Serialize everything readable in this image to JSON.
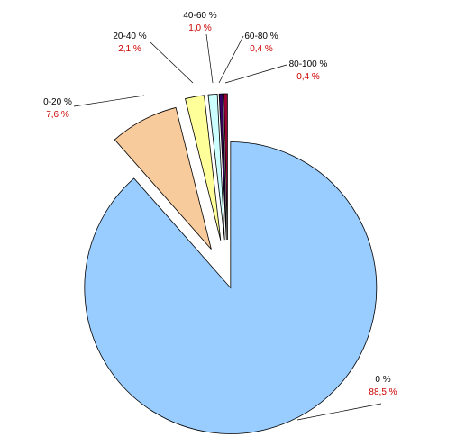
{
  "chart_data": {
    "type": "pie",
    "categories": [
      "0 %",
      "0-20 %",
      "20-40 %",
      "40-60 %",
      "60-80 %",
      "80-100 %"
    ],
    "values": [
      88.5,
      7.6,
      2.1,
      1.0,
      0.4,
      0.4
    ],
    "value_labels": [
      "88,5 %",
      "7,6 %",
      "2,1 %",
      "1,0 %",
      "0,4 %",
      "0,4 %"
    ],
    "colors": [
      "#99ccff",
      "#f8cb9c",
      "#ffff99",
      "#ccffff",
      "#330066",
      "#990033"
    ],
    "label_color": "#cc0000",
    "exploded": true,
    "legend": "none"
  }
}
